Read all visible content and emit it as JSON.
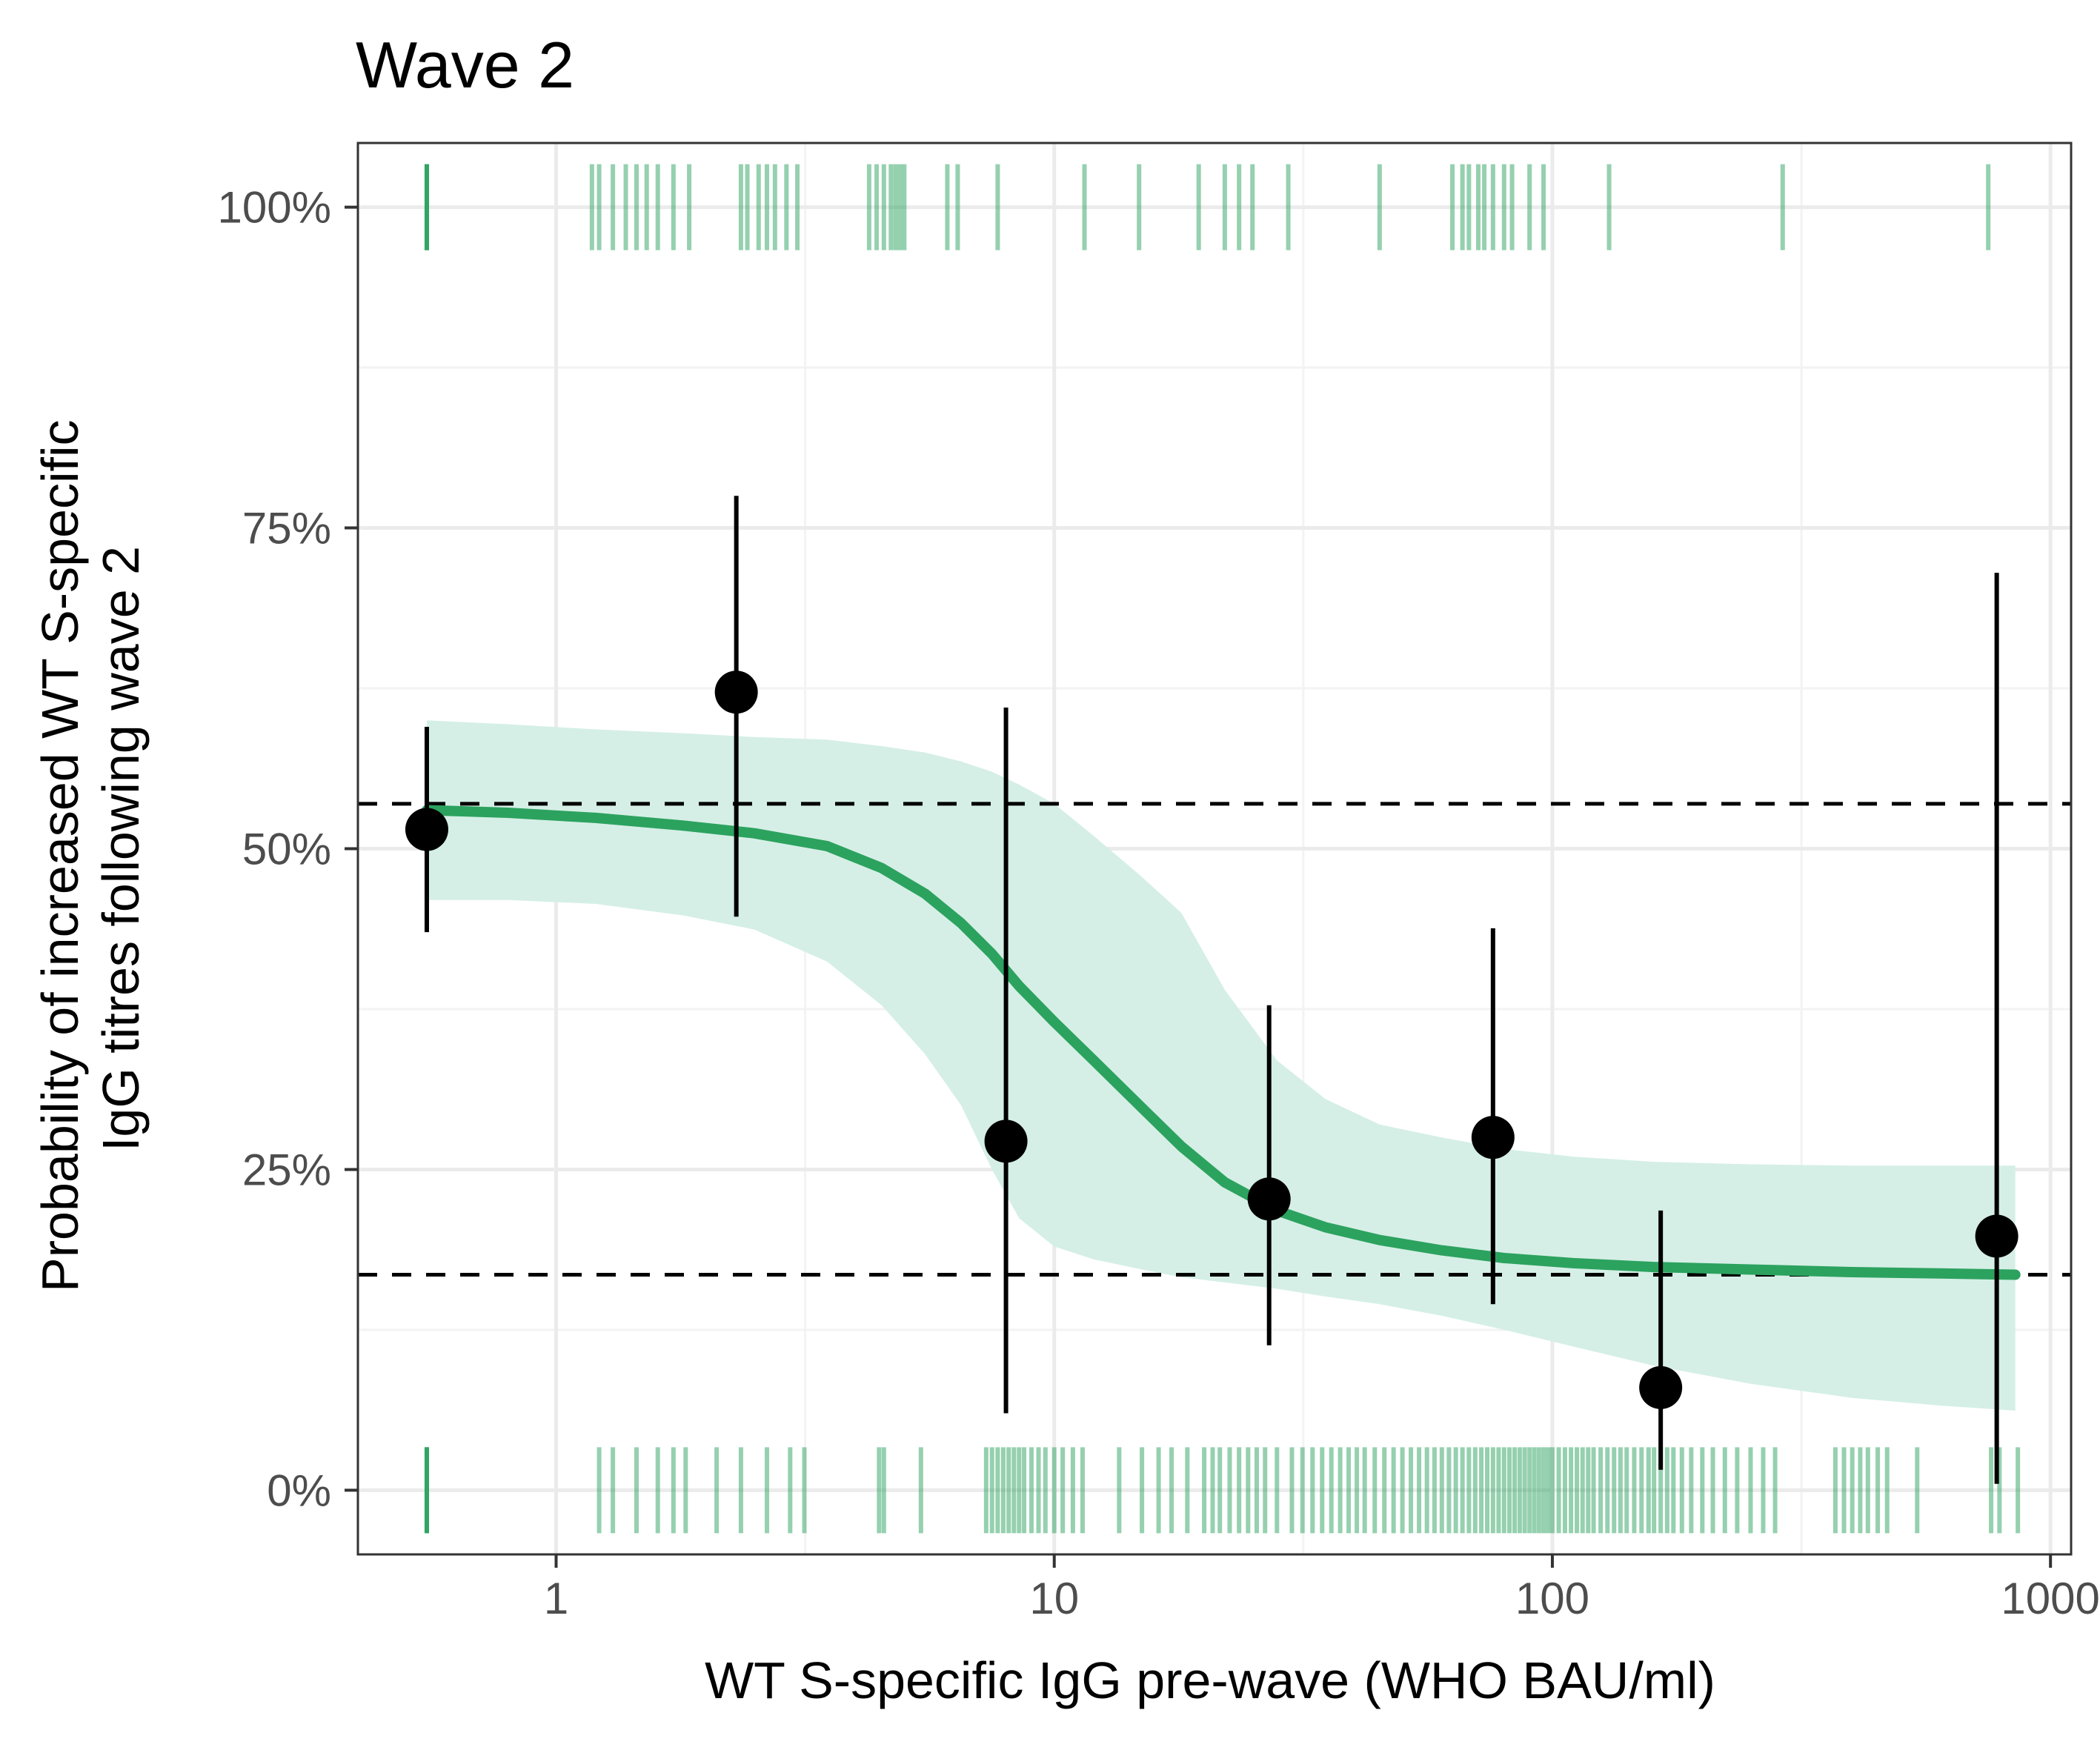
{
  "chart_data": {
    "type": "line",
    "title": "Wave 2",
    "xlabel": "WT S-specific IgG pre-wave (WHO BAU/ml)",
    "ylabel_lines": [
      "Probability of increased WT S-specific",
      "IgG titres following wave 2"
    ],
    "x_scale": "log10",
    "xlim": [
      0.4,
      1100
    ],
    "ylim": [
      -0.05,
      1.05
    ],
    "x_ticks": [
      1,
      10,
      100,
      1000
    ],
    "x_tick_labels": [
      "1",
      "10",
      "100",
      "1000"
    ],
    "y_ticks": [
      0,
      0.25,
      0.5,
      0.75,
      1.0
    ],
    "y_tick_labels": [
      "0%",
      "25%",
      "50%",
      "75%",
      "100%"
    ],
    "grid": true,
    "colors": {
      "curve": "#2ca25f",
      "ribbon": "#d5efe6",
      "rug": "#2ca25f",
      "points": "#000000",
      "reference": "#000000",
      "grid_major": "#ebebeb",
      "grid_minor": "#f3f3f3",
      "panel_border": "#333333"
    },
    "reference_lines": [
      0.535,
      0.168
    ],
    "fitted_curve": [
      {
        "x": 0.55,
        "y": 0.53,
        "lo": 0.46,
        "hi": 0.6
      },
      {
        "x": 0.8,
        "y": 0.528,
        "lo": 0.46,
        "hi": 0.597
      },
      {
        "x": 1.2,
        "y": 0.524,
        "lo": 0.457,
        "hi": 0.593
      },
      {
        "x": 1.8,
        "y": 0.518,
        "lo": 0.448,
        "hi": 0.59
      },
      {
        "x": 2.5,
        "y": 0.512,
        "lo": 0.437,
        "hi": 0.587
      },
      {
        "x": 3.5,
        "y": 0.502,
        "lo": 0.412,
        "hi": 0.585
      },
      {
        "x": 4.5,
        "y": 0.485,
        "lo": 0.378,
        "hi": 0.58
      },
      {
        "x": 5.5,
        "y": 0.465,
        "lo": 0.34,
        "hi": 0.575
      },
      {
        "x": 6.5,
        "y": 0.442,
        "lo": 0.3,
        "hi": 0.568
      },
      {
        "x": 7.5,
        "y": 0.418,
        "lo": 0.25,
        "hi": 0.56
      },
      {
        "x": 8.5,
        "y": 0.393,
        "lo": 0.212,
        "hi": 0.55
      },
      {
        "x": 10,
        "y": 0.365,
        "lo": 0.19,
        "hi": 0.535
      },
      {
        "x": 12,
        "y": 0.335,
        "lo": 0.18,
        "hi": 0.51
      },
      {
        "x": 15,
        "y": 0.298,
        "lo": 0.172,
        "hi": 0.478
      },
      {
        "x": 18,
        "y": 0.268,
        "lo": 0.166,
        "hi": 0.45
      },
      {
        "x": 22,
        "y": 0.24,
        "lo": 0.162,
        "hi": 0.39
      },
      {
        "x": 28,
        "y": 0.218,
        "lo": 0.157,
        "hi": 0.335
      },
      {
        "x": 35,
        "y": 0.205,
        "lo": 0.151,
        "hi": 0.305
      },
      {
        "x": 45,
        "y": 0.195,
        "lo": 0.145,
        "hi": 0.285
      },
      {
        "x": 60,
        "y": 0.187,
        "lo": 0.136,
        "hi": 0.275
      },
      {
        "x": 80,
        "y": 0.181,
        "lo": 0.125,
        "hi": 0.266
      },
      {
        "x": 110,
        "y": 0.177,
        "lo": 0.112,
        "hi": 0.26
      },
      {
        "x": 160,
        "y": 0.174,
        "lo": 0.097,
        "hi": 0.256
      },
      {
        "x": 250,
        "y": 0.172,
        "lo": 0.083,
        "hi": 0.254
      },
      {
        "x": 400,
        "y": 0.17,
        "lo": 0.072,
        "hi": 0.253
      },
      {
        "x": 600,
        "y": 0.169,
        "lo": 0.066,
        "hi": 0.253
      },
      {
        "x": 850,
        "y": 0.168,
        "lo": 0.062,
        "hi": 0.253
      }
    ],
    "binned_points": [
      {
        "x": 0.55,
        "y": 0.515,
        "lo": 0.435,
        "hi": 0.595
      },
      {
        "x": 2.3,
        "y": 0.622,
        "lo": 0.447,
        "hi": 0.775
      },
      {
        "x": 8.0,
        "y": 0.272,
        "lo": 0.06,
        "hi": 0.61
      },
      {
        "x": 27,
        "y": 0.227,
        "lo": 0.113,
        "hi": 0.378
      },
      {
        "x": 76,
        "y": 0.275,
        "lo": 0.145,
        "hi": 0.438
      },
      {
        "x": 165,
        "y": 0.08,
        "lo": 0.016,
        "hi": 0.218
      },
      {
        "x": 780,
        "y": 0.198,
        "lo": 0.005,
        "hi": 0.715
      }
    ],
    "rug_top": [
      0.55,
      0.55,
      0.55,
      0.55,
      0.55,
      1.18,
      1.22,
      1.3,
      1.38,
      1.45,
      1.52,
      1.6,
      1.72,
      1.85,
      2.35,
      2.42,
      2.55,
      2.65,
      2.75,
      2.9,
      3.05,
      4.25,
      4.4,
      4.55,
      4.7,
      4.8,
      4.9,
      5.0,
      6.1,
      6.4,
      7.7,
      11.5,
      14.8,
      19.5,
      22.0,
      23.5,
      25.0,
      29.5,
      45.0,
      63,
      66,
      68,
      71,
      73,
      76,
      80,
      83,
      90,
      96,
      130,
      290,
      750
    ],
    "rug_bottom": [
      0.55,
      0.55,
      0.55,
      0.55,
      0.55,
      1.22,
      1.3,
      1.45,
      1.6,
      1.72,
      1.82,
      2.1,
      2.35,
      2.65,
      2.95,
      3.15,
      4.45,
      4.55,
      5.4,
      7.3,
      7.5,
      7.7,
      7.9,
      8.1,
      8.3,
      8.5,
      8.7,
      9.0,
      9.3,
      9.6,
      10.0,
      10.4,
      10.9,
      11.4,
      13.5,
      15.0,
      16.2,
      17.2,
      18.5,
      20.0,
      20.8,
      21.5,
      22.5,
      23.5,
      24.5,
      25.5,
      26.5,
      28.0,
      30,
      31.5,
      33,
      34.5,
      36,
      37.5,
      39,
      40.5,
      42,
      44,
      46,
      48,
      50,
      52,
      54,
      56,
      58,
      60,
      62,
      64,
      66,
      68,
      70,
      72,
      74,
      76,
      78,
      80,
      82,
      84,
      86,
      88,
      90,
      92,
      94,
      96,
      98,
      100,
      103,
      106,
      109,
      112,
      115,
      118,
      121,
      125,
      129,
      133,
      137,
      141,
      146,
      151,
      156,
      160,
      165,
      170,
      175,
      182,
      190,
      200,
      210,
      222,
      235,
      250,
      265,
      280,
      370,
      385,
      400,
      415,
      430,
      450,
      470,
      540,
      760,
      790,
      860
    ]
  }
}
